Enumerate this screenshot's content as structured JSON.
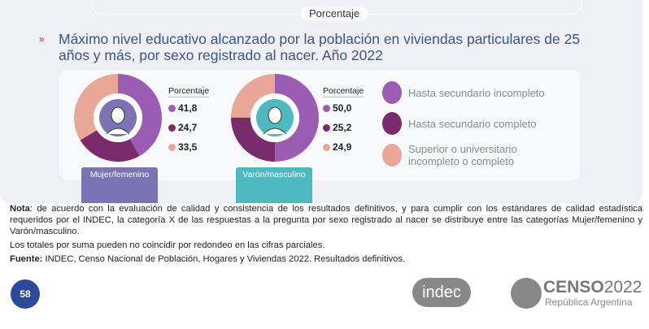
{
  "header": {
    "porcentaje_label": "Porcentaje"
  },
  "title": "Máximo nivel educativo alcanzado por la población en viviendas particulares de 25 años y más, por sexo registrado al nacer. Año 2022",
  "colors": {
    "hasta_sec_incompleto": "#9b5cb4",
    "hasta_sec_completo": "#7a2b6b",
    "superior": "#e8a797",
    "mujer": "#7b73b3",
    "varon": "#4fb9c1",
    "title": "#3a5487"
  },
  "chart_data": [
    {
      "type": "pie",
      "donut": true,
      "title": "Mujer/femenino",
      "values_header": "Porcentaje",
      "categories": [
        "Hasta secundario incompleto",
        "Hasta secundario completo",
        "Superior o universitario incompleto o completo"
      ],
      "values": [
        41.8,
        24.7,
        33.5
      ],
      "labels": [
        "41,8",
        "24,7",
        "33,5"
      ],
      "icon": "woman-avatar-icon"
    },
    {
      "type": "pie",
      "donut": true,
      "title": "Varón/masculino",
      "values_header": "Porcentaje",
      "categories": [
        "Hasta secundario incompleto",
        "Hasta secundario completo",
        "Superior o universitario incompleto o completo"
      ],
      "values": [
        50.0,
        25.2,
        24.9
      ],
      "labels": [
        "50,0",
        "25,2",
        "24,9"
      ],
      "icon": "man-avatar-icon"
    }
  ],
  "legend": [
    "Hasta secundario incompleto",
    "Hasta secundario completo",
    "Superior o universitario incompleto o completo"
  ],
  "notes": {
    "nota_label": "Nota",
    "nota": ": de acuerdo con la evaluación de calidad y consistencia de los resultados definitivos, y para cumplir con los estándares de calidad estadística requeridos por el INDEC, la categoría X de las respuestas a la pregunta por sexo registrado al nacer se distribuye entre las categorías Mujer/femenino y Varón/masculino.",
    "totales": "Los totales por suma pueden no coincidir por redondeo en las cifras parciales.",
    "fuente_label": "Fuente:",
    "fuente": " INDEC, Censo Nacional de Población, Hogares y Viviendas 2022. Resultados definitivos."
  },
  "footer": {
    "page": "58",
    "indec": "indec",
    "censo": "CENSO",
    "censo_year": "2022",
    "censo_sub": "República Argentina"
  }
}
